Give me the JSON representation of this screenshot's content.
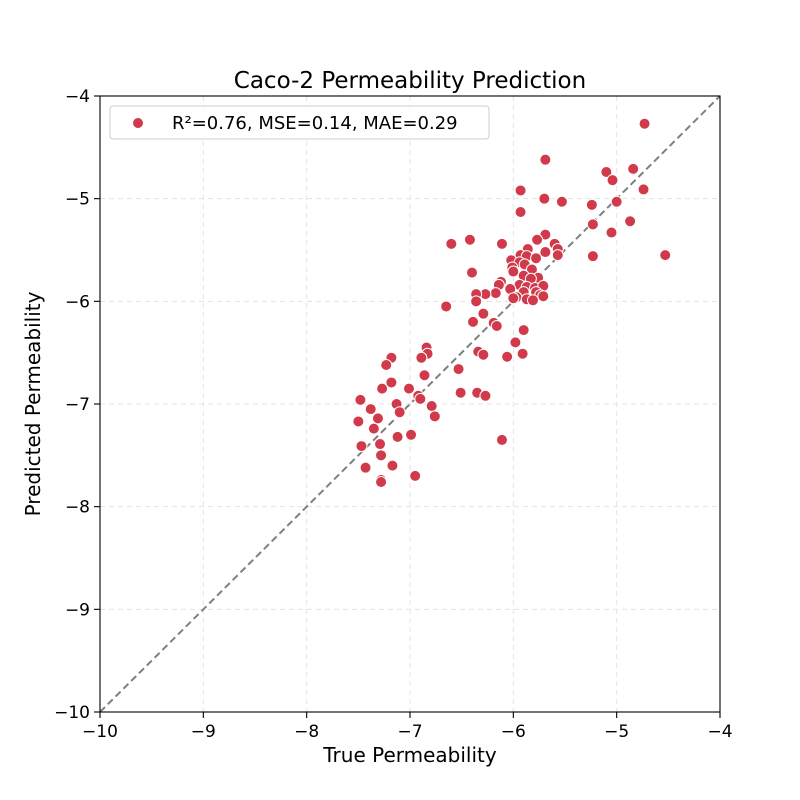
{
  "chart_data": {
    "type": "scatter",
    "title": "Caco-2 Permeability Prediction",
    "xlabel": "True Permeability",
    "ylabel": "Predicted Permeability",
    "xlim": [
      -10,
      -4
    ],
    "ylim": [
      -10,
      -4
    ],
    "xticks": [
      "−10",
      "−9",
      "−8",
      "−7",
      "−6",
      "−5",
      "−4"
    ],
    "yticks": [
      "−10",
      "−9",
      "−8",
      "−7",
      "−6",
      "−5",
      "−4"
    ],
    "grid": true,
    "legend_position": "top-left",
    "reference_line": "y = x (dashed)",
    "point_color": "#d03a4a",
    "line_color": "#7f7f7f",
    "series": [
      {
        "name": "R²=0.76, MSE=0.14, MAE=0.29",
        "points": [
          [
            -4.73,
            -4.27
          ],
          [
            -5.69,
            -4.62
          ],
          [
            -5.1,
            -4.74
          ],
          [
            -4.84,
            -4.71
          ],
          [
            -5.04,
            -4.82
          ],
          [
            -4.74,
            -4.91
          ],
          [
            -5.93,
            -4.92
          ],
          [
            -5.7,
            -5.0
          ],
          [
            -5.53,
            -5.03
          ],
          [
            -5.0,
            -5.03
          ],
          [
            -5.24,
            -5.06
          ],
          [
            -5.93,
            -5.13
          ],
          [
            -4.87,
            -5.22
          ],
          [
            -5.23,
            -5.25
          ],
          [
            -5.05,
            -5.33
          ],
          [
            -5.69,
            -5.35
          ],
          [
            -5.77,
            -5.4
          ],
          [
            -5.6,
            -5.44
          ],
          [
            -6.42,
            -5.4
          ],
          [
            -6.6,
            -5.44
          ],
          [
            -6.11,
            -5.44
          ],
          [
            -5.57,
            -5.49
          ],
          [
            -5.86,
            -5.49
          ],
          [
            -5.69,
            -5.52
          ],
          [
            -5.93,
            -5.55
          ],
          [
            -5.87,
            -5.56
          ],
          [
            -5.57,
            -5.55
          ],
          [
            -5.23,
            -5.56
          ],
          [
            -4.53,
            -5.55
          ],
          [
            -5.78,
            -5.58
          ],
          [
            -6.02,
            -5.6
          ],
          [
            -5.94,
            -5.62
          ],
          [
            -5.89,
            -5.64
          ],
          [
            -6.01,
            -5.67
          ],
          [
            -5.82,
            -5.69
          ],
          [
            -6.0,
            -5.71
          ],
          [
            -6.4,
            -5.72
          ],
          [
            -5.9,
            -5.75
          ],
          [
            -5.76,
            -5.77
          ],
          [
            -5.83,
            -5.78
          ],
          [
            -6.12,
            -5.81
          ],
          [
            -6.14,
            -5.84
          ],
          [
            -5.94,
            -5.84
          ],
          [
            -5.87,
            -5.86
          ],
          [
            -5.79,
            -5.87
          ],
          [
            -5.71,
            -5.85
          ],
          [
            -5.78,
            -5.91
          ],
          [
            -6.03,
            -5.88
          ],
          [
            -5.9,
            -5.91
          ],
          [
            -6.17,
            -5.92
          ],
          [
            -6.27,
            -5.93
          ],
          [
            -6.36,
            -5.93
          ],
          [
            -5.74,
            -5.94
          ],
          [
            -5.71,
            -5.95
          ],
          [
            -5.97,
            -5.96
          ],
          [
            -6.0,
            -5.97
          ],
          [
            -5.87,
            -5.98
          ],
          [
            -5.81,
            -5.99
          ],
          [
            -6.36,
            -6.0
          ],
          [
            -6.65,
            -6.05
          ],
          [
            -6.29,
            -6.12
          ],
          [
            -6.39,
            -6.2
          ],
          [
            -6.19,
            -6.21
          ],
          [
            -6.16,
            -6.24
          ],
          [
            -5.9,
            -6.28
          ],
          [
            -5.98,
            -6.4
          ],
          [
            -6.84,
            -6.45
          ],
          [
            -6.34,
            -6.49
          ],
          [
            -6.83,
            -6.51
          ],
          [
            -5.91,
            -6.51
          ],
          [
            -6.29,
            -6.52
          ],
          [
            -6.06,
            -6.54
          ],
          [
            -7.18,
            -6.55
          ],
          [
            -6.89,
            -6.55
          ],
          [
            -7.23,
            -6.62
          ],
          [
            -6.53,
            -6.66
          ],
          [
            -6.86,
            -6.72
          ],
          [
            -7.18,
            -6.79
          ],
          [
            -7.27,
            -6.85
          ],
          [
            -7.01,
            -6.85
          ],
          [
            -6.35,
            -6.89
          ],
          [
            -6.51,
            -6.89
          ],
          [
            -6.27,
            -6.92
          ],
          [
            -6.92,
            -6.92
          ],
          [
            -6.9,
            -6.95
          ],
          [
            -7.48,
            -6.96
          ],
          [
            -7.13,
            -7.0
          ],
          [
            -6.79,
            -7.02
          ],
          [
            -7.38,
            -7.05
          ],
          [
            -7.1,
            -7.08
          ],
          [
            -6.76,
            -7.12
          ],
          [
            -7.31,
            -7.14
          ],
          [
            -7.5,
            -7.17
          ],
          [
            -7.35,
            -7.24
          ],
          [
            -7.12,
            -7.32
          ],
          [
            -6.99,
            -7.3
          ],
          [
            -6.11,
            -7.35
          ],
          [
            -7.29,
            -7.39
          ],
          [
            -7.47,
            -7.41
          ],
          [
            -7.28,
            -7.5
          ],
          [
            -7.43,
            -7.62
          ],
          [
            -7.17,
            -7.6
          ],
          [
            -6.95,
            -7.7
          ],
          [
            -7.28,
            -7.74
          ],
          [
            -7.28,
            -7.76
          ]
        ]
      }
    ]
  }
}
